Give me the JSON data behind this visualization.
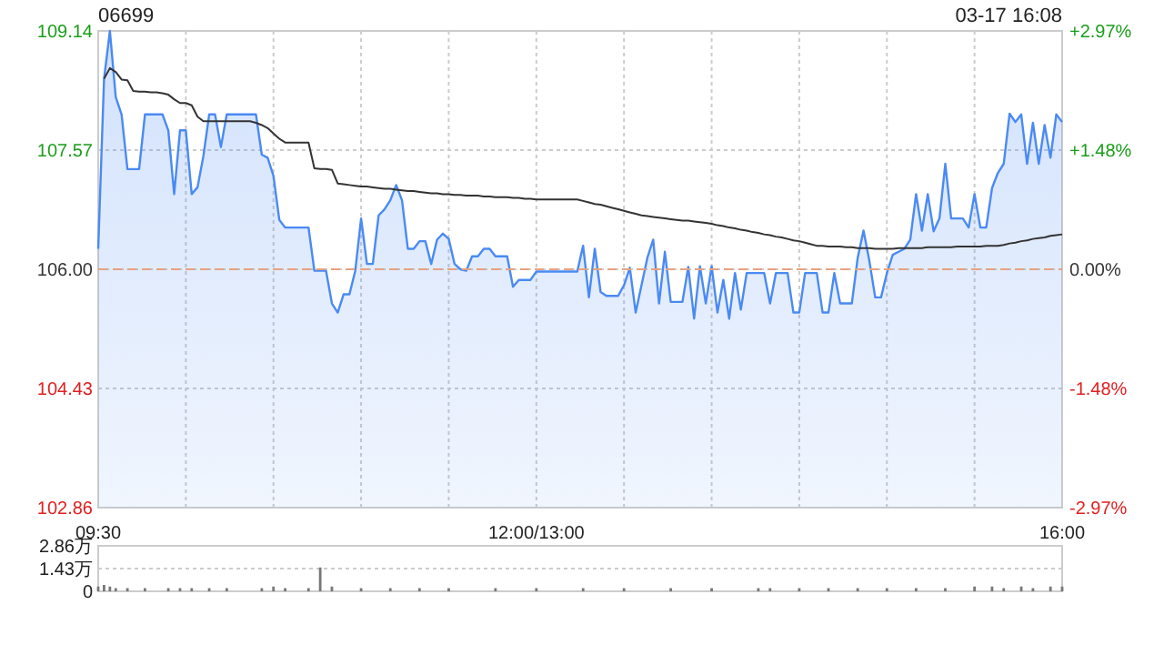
{
  "chart_data": [
    {
      "type": "area",
      "title": "06699",
      "subtitle": "03-17 16:08",
      "categories": [
        "09:30",
        null,
        null,
        null,
        null,
        null,
        null,
        null,
        null,
        null,
        null,
        null,
        null,
        null,
        null,
        null,
        null,
        null,
        null,
        null,
        null,
        null,
        null,
        null,
        null,
        null,
        null,
        null,
        null,
        null,
        null,
        null,
        null,
        null,
        null,
        null,
        null,
        null,
        null,
        null,
        null,
        null,
        null,
        null,
        null,
        null,
        null,
        null,
        null,
        null,
        null,
        null,
        null,
        null,
        null,
        null,
        null,
        null,
        null,
        null,
        null,
        null,
        null,
        null,
        null,
        null,
        null,
        null,
        null,
        null,
        null,
        null,
        null,
        null,
        null,
        "12:00/13:00",
        null,
        null,
        null,
        null,
        null,
        null,
        null,
        null,
        null,
        null,
        null,
        null,
        null,
        null,
        null,
        null,
        null,
        null,
        null,
        null,
        null,
        null,
        null,
        null,
        null,
        null,
        null,
        null,
        null,
        null,
        null,
        null,
        null,
        null,
        null,
        null,
        null,
        null,
        null,
        null,
        null,
        null,
        null,
        null,
        null,
        null,
        null,
        null,
        null,
        null,
        null,
        null,
        null,
        null,
        null,
        null,
        null,
        null,
        null,
        null,
        null,
        null,
        null,
        null,
        null,
        null,
        null,
        null,
        null,
        null,
        null,
        null,
        null,
        null,
        null,
        null,
        null,
        null,
        null,
        null,
        null,
        null,
        null,
        null,
        null,
        null,
        null,
        null,
        null,
        "16:00"
      ],
      "ylim": [
        102.86,
        109.14
      ],
      "yticks": [
        {
          "value": 102.86,
          "label": "102.86"
        },
        {
          "value": 104.43,
          "label": "104.43"
        },
        {
          "value": 106,
          "label": "106.00"
        },
        {
          "value": 107.57,
          "label": "107.57"
        },
        {
          "value": 109.14,
          "label": "109.14"
        }
      ],
      "y2lim": [
        -2.97,
        2.97
      ],
      "y2ticks": [
        {
          "value": -2.97,
          "label": "-2.97%"
        },
        {
          "value": -1.48,
          "label": "-1.48%"
        },
        {
          "value": 0,
          "label": "0.00%"
        },
        {
          "value": 1.48,
          "label": "+1.48%"
        },
        {
          "value": 2.97,
          "label": "+2.97%"
        }
      ],
      "grid": true,
      "ref_lines": [
        {
          "axis": "y",
          "value": 106,
          "color": "#e8a080",
          "line_style": "dashed"
        }
      ],
      "series": [
        {
          "type": "area",
          "color": "#4a8af4",
          "values": [
            106.27,
            108.51,
            109.14,
            108.27,
            108.04,
            107.32,
            107.32,
            107.32,
            108.04,
            108.04,
            108.04,
            108.04,
            107.83,
            106.99,
            107.83,
            107.83,
            106.99,
            107.08,
            107.49,
            108.04,
            108.04,
            107.61,
            108.04,
            108.04,
            108.04,
            108.04,
            108.04,
            108.04,
            107.51,
            107.47,
            107.23,
            106.65,
            106.55,
            106.55,
            106.55,
            106.55,
            106.55,
            105.98,
            105.98,
            105.98,
            105.55,
            105.43,
            105.67,
            105.67,
            105.98,
            106.67,
            106.07,
            106.07,
            106.71,
            106.79,
            106.91,
            107.11,
            106.91,
            106.27,
            106.27,
            106.37,
            106.37,
            106.07,
            106.39,
            106.47,
            106.4,
            106.07,
            106.0,
            105.98,
            106.17,
            106.17,
            106.27,
            106.27,
            106.17,
            106.17,
            106.17,
            105.77,
            105.86,
            105.86,
            105.86,
            105.97,
            105.97,
            105.97,
            105.97,
            105.97,
            105.97,
            105.97,
            105.97,
            106.31,
            105.63,
            106.27,
            105.7,
            105.65,
            105.65,
            105.65,
            105.79,
            106.02,
            105.43,
            105.79,
            106.15,
            106.39,
            105.55,
            106.23,
            105.57,
            105.57,
            105.57,
            106.03,
            105.35,
            106.04,
            105.55,
            106.04,
            105.43,
            105.86,
            105.35,
            105.95,
            105.47,
            105.95,
            105.95,
            105.95,
            105.95,
            105.55,
            105.95,
            105.95,
            105.95,
            105.43,
            105.43,
            105.95,
            105.95,
            105.95,
            105.43,
            105.43,
            105.95,
            105.55,
            105.55,
            105.55,
            106.15,
            106.51,
            106.11,
            105.63,
            105.63,
            105.95,
            106.19,
            106.23,
            106.27,
            106.39,
            106.99,
            106.51,
            106.99,
            106.5,
            106.67,
            107.39,
            106.67,
            106.67,
            106.67,
            106.55,
            106.99,
            106.55,
            106.55,
            107.07,
            107.27,
            107.39,
            108.05,
            107.94,
            108.04,
            107.39,
            107.93,
            107.39,
            107.9,
            107.47,
            108.04,
            107.94
          ]
        },
        {
          "type": "line",
          "color": "#333333",
          "values": [
            null,
            108.51,
            108.65,
            108.6,
            108.5,
            108.49,
            108.35,
            108.34,
            108.34,
            108.33,
            108.33,
            108.32,
            108.3,
            108.24,
            108.19,
            108.19,
            108.16,
            108.01,
            107.95,
            107.95,
            107.95,
            107.95,
            107.95,
            107.95,
            107.95,
            107.95,
            107.95,
            107.93,
            107.9,
            107.86,
            107.79,
            107.72,
            107.67,
            107.67,
            107.67,
            107.67,
            107.67,
            107.33,
            107.32,
            107.32,
            107.31,
            107.13,
            107.12,
            107.11,
            107.1,
            107.09,
            107.09,
            107.08,
            107.07,
            107.06,
            107.06,
            107.05,
            107.04,
            107.03,
            107.03,
            107.02,
            107.01,
            107.0,
            107.0,
            106.99,
            106.99,
            106.98,
            106.98,
            106.97,
            106.97,
            106.97,
            106.96,
            106.96,
            106.95,
            106.95,
            106.95,
            106.94,
            106.94,
            106.93,
            106.93,
            106.92,
            106.92,
            106.92,
            106.92,
            106.92,
            106.92,
            106.92,
            106.92,
            106.9,
            106.88,
            106.86,
            106.85,
            106.83,
            106.81,
            106.79,
            106.77,
            106.75,
            106.73,
            106.71,
            106.7,
            106.69,
            106.68,
            106.67,
            106.66,
            106.65,
            106.64,
            106.64,
            106.63,
            106.62,
            106.61,
            106.6,
            106.58,
            106.57,
            106.55,
            106.54,
            106.52,
            106.51,
            106.49,
            106.48,
            106.46,
            106.45,
            106.43,
            106.42,
            106.4,
            106.38,
            106.37,
            106.35,
            106.33,
            106.31,
            106.31,
            106.3,
            106.3,
            106.3,
            106.29,
            106.29,
            106.28,
            106.28,
            106.28,
            106.27,
            106.27,
            106.27,
            106.27,
            106.28,
            106.28,
            106.28,
            106.28,
            106.28,
            106.29,
            106.29,
            106.29,
            106.29,
            106.29,
            106.3,
            106.3,
            106.3,
            106.3,
            106.3,
            106.31,
            106.31,
            106.31,
            106.32,
            106.34,
            106.35,
            106.37,
            106.38,
            106.4,
            106.41,
            106.42,
            106.44,
            106.45,
            106.46
          ]
        }
      ]
    },
    {
      "type": "bar",
      "ylim": [
        0,
        2.86
      ],
      "yticks": [
        0,
        {
          "value": 1.43,
          "label": "1.43万"
        },
        {
          "value": 2.86,
          "label": "2.86万"
        }
      ],
      "tick_labels": "y",
      "grid": "y",
      "color": "#777777",
      "categories": [
        null,
        null,
        null,
        null,
        null,
        null,
        null,
        null,
        null,
        null,
        null,
        null,
        null,
        null,
        null,
        null,
        null,
        null,
        null,
        null,
        null,
        null,
        null,
        null,
        null,
        null,
        null,
        null,
        null,
        null,
        null,
        null,
        null,
        null,
        null,
        null,
        null,
        null,
        null,
        null,
        null,
        null,
        null,
        null,
        null,
        null,
        null,
        null,
        null,
        null,
        null,
        null,
        null,
        null,
        null,
        null,
        null,
        null,
        null,
        null,
        null,
        null,
        null,
        null,
        null,
        null,
        null,
        null,
        null,
        null,
        null,
        null,
        null,
        null,
        null,
        null,
        null,
        null,
        null,
        null,
        null,
        null,
        null,
        null,
        null,
        null,
        null,
        null,
        null,
        null,
        null,
        null,
        null,
        null,
        null,
        null,
        null,
        null,
        null,
        null,
        null,
        null,
        null,
        null,
        null,
        null,
        null,
        null,
        null,
        null,
        null,
        null,
        null,
        null,
        null,
        null,
        null,
        null,
        null,
        null,
        null,
        null,
        null,
        null,
        null,
        null,
        null,
        null,
        null,
        null,
        null,
        null,
        null,
        null,
        null,
        null,
        null,
        null,
        null,
        null,
        null,
        null,
        null,
        null,
        null,
        null,
        null,
        null,
        null,
        null,
        null,
        null,
        null,
        null,
        null,
        null,
        null,
        null,
        null,
        null,
        null,
        null,
        null,
        null,
        null,
        null
      ],
      "values": [
        0.3,
        0.4,
        0.3,
        0.2,
        null,
        0.2,
        null,
        null,
        0.2,
        null,
        null,
        null,
        0.2,
        null,
        0.2,
        null,
        0.2,
        null,
        null,
        0.2,
        null,
        null,
        0.2,
        null,
        null,
        null,
        null,
        null,
        0.2,
        null,
        0.3,
        null,
        0.2,
        null,
        null,
        null,
        0.2,
        null,
        1.5,
        null,
        0.3,
        null,
        null,
        null,
        null,
        0.2,
        null,
        null,
        null,
        null,
        0.2,
        null,
        null,
        null,
        null,
        0.2,
        null,
        null,
        null,
        null,
        0.2,
        null,
        null,
        null,
        null,
        null,
        null,
        null,
        0.2,
        null,
        null,
        null,
        null,
        null,
        null,
        0.2,
        null,
        null,
        null,
        null,
        null,
        null,
        null,
        0.2,
        null,
        null,
        null,
        null,
        null,
        null,
        0.2,
        null,
        null,
        null,
        null,
        null,
        null,
        null,
        0.2,
        null,
        null,
        null,
        null,
        null,
        null,
        0.2,
        null,
        null,
        null,
        null,
        null,
        null,
        null,
        0.2,
        null,
        0.2,
        null,
        null,
        null,
        null,
        0.2,
        null,
        null,
        null,
        null,
        0.2,
        null,
        null,
        null,
        null,
        0.2,
        null,
        null,
        null,
        null,
        0.2,
        null,
        null,
        null,
        null,
        0.2,
        null,
        null,
        null,
        null,
        0.2,
        null,
        null,
        null,
        null,
        0.3,
        null,
        null,
        0.3,
        null,
        0.2,
        null,
        null,
        0.3,
        null,
        0.2,
        null,
        null,
        0.3,
        null,
        0.3
      ]
    }
  ]
}
